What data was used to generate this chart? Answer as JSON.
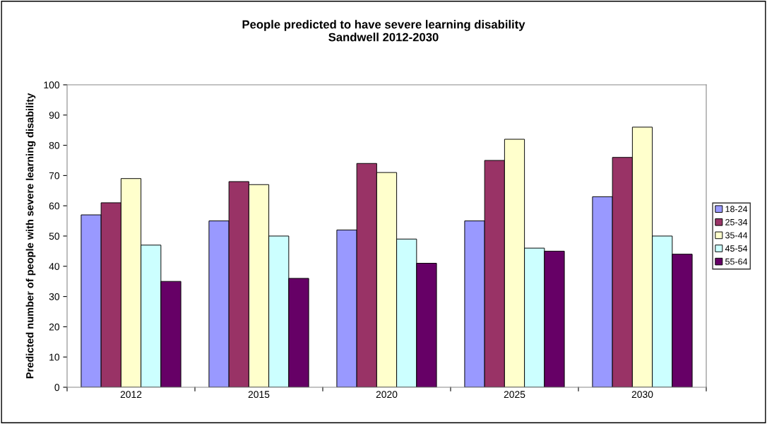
{
  "chart_data": {
    "type": "bar",
    "title": "People predicted to have severe learning disability\nSandwell 2012-2030",
    "ylabel": "Predicted number of people with severe learning disability",
    "categories": [
      "2012",
      "2015",
      "2020",
      "2025",
      "2030"
    ],
    "series": [
      {
        "name": "18-24",
        "color": "#9999ff",
        "values": [
          57,
          55,
          52,
          55,
          63
        ]
      },
      {
        "name": "25-34",
        "color": "#993366",
        "values": [
          61,
          68,
          74,
          75,
          76
        ]
      },
      {
        "name": "35-44",
        "color": "#ffffcc",
        "values": [
          69,
          67,
          71,
          82,
          86
        ]
      },
      {
        "name": "45-54",
        "color": "#ccffff",
        "values": [
          47,
          50,
          49,
          46,
          50
        ]
      },
      {
        "name": "55-64",
        "color": "#660066",
        "values": [
          35,
          36,
          41,
          45,
          44
        ]
      }
    ],
    "ylim": [
      0,
      100
    ],
    "yticks": [
      0,
      10,
      20,
      30,
      40,
      50,
      60,
      70,
      80,
      90,
      100
    ],
    "grid": false,
    "legend": "right"
  }
}
